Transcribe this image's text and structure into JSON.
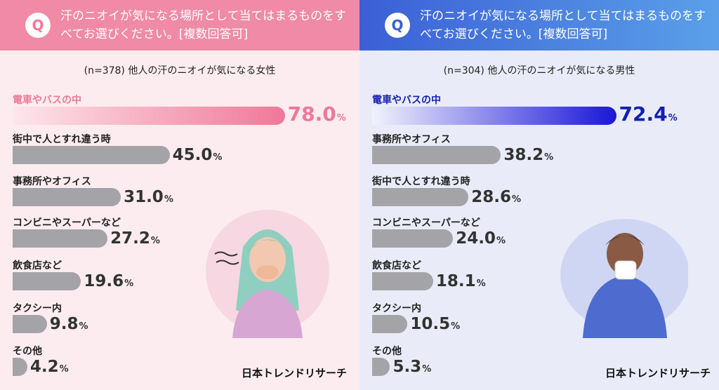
{
  "question": "汗のニオイが気になる場所として当てはまるものをすべてお選びください。[複数回答可]",
  "q_badge": "Q",
  "logo": "日本トレンドリサーチ",
  "percent_unit": "%",
  "accent_colors": {
    "female": "#ef7898",
    "male": "#1420b0"
  },
  "chart_data": [
    {
      "type": "bar",
      "title": "(n=378) 他人の汗のニオイが気になる女性",
      "categories": [
        "電車やバスの中",
        "街中で人とすれ違う時",
        "事務所やオフィス",
        "コンビニやスーパーなど",
        "飲食店など",
        "タクシー内",
        "その他"
      ],
      "values": [
        78.0,
        45.0,
        31.0,
        27.2,
        19.6,
        9.8,
        4.2
      ],
      "labels": [
        "78.0",
        "45.0",
        "31.0",
        "27.2",
        "19.6",
        "9.8",
        "4.2"
      ]
    },
    {
      "type": "bar",
      "title": "(n=304) 他人の汗のニオイが気になる男性",
      "categories": [
        "電車やバスの中",
        "事務所やオフィス",
        "街中で人とすれ違う時",
        "コンビニやスーパーなど",
        "飲食店など",
        "タクシー内",
        "その他"
      ],
      "values": [
        72.4,
        38.2,
        28.6,
        24.0,
        18.1,
        10.5,
        5.3
      ],
      "labels": [
        "72.4",
        "38.2",
        "28.6",
        "24.0",
        "18.1",
        "10.5",
        "5.3"
      ]
    }
  ]
}
